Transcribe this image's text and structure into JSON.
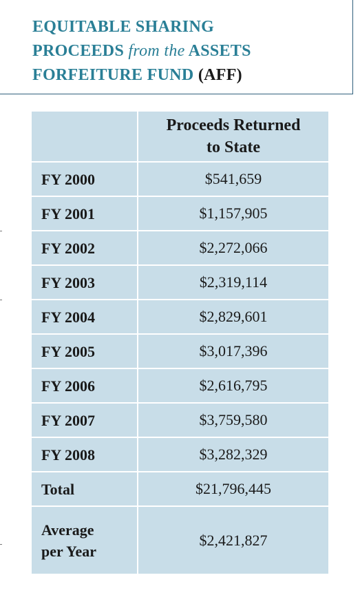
{
  "title": {
    "lines": [
      [
        {
          "text": "EQUITABLE SHARING",
          "style": "caps"
        }
      ],
      [
        {
          "text": "PROCEEDS",
          "style": "caps"
        },
        {
          "text": "from the",
          "style": "italic"
        },
        {
          "text": "ASSETS",
          "style": "caps"
        }
      ],
      [
        {
          "text": "FORFEITURE FUND",
          "style": "caps"
        },
        {
          "text": "(AFF)",
          "style": "dark"
        }
      ]
    ]
  },
  "table": {
    "header": [
      "",
      "Proceeds Returned to State"
    ],
    "rows": [
      [
        "FY 2000",
        "$541,659"
      ],
      [
        "FY 2001",
        "$1,157,905"
      ],
      [
        "FY 2002",
        "$2,272,066"
      ],
      [
        "FY 2003",
        "$2,319,114"
      ],
      [
        "FY 2004",
        "$2,829,601"
      ],
      [
        "FY 2005",
        "$3,017,396"
      ],
      [
        "FY 2006",
        "$2,616,795"
      ],
      [
        "FY 2007",
        "$3,759,580"
      ],
      [
        "FY 2008",
        "$3,282,329"
      ],
      [
        "Total",
        "$21,796,445"
      ],
      [
        "Average per Year",
        "$2,421,827"
      ]
    ]
  }
}
